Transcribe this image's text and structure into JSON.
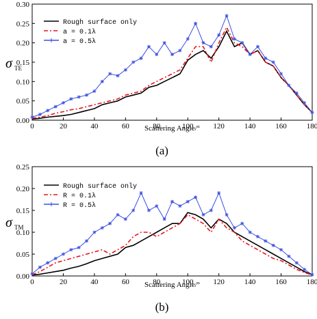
{
  "chart_data": [
    {
      "type": "line",
      "xlabel": "Scattering Angle/°",
      "ylabel": "σ",
      "ylabel_subscript": "TE",
      "caption": "(a)",
      "x": [
        0,
        5,
        10,
        15,
        20,
        25,
        30,
        35,
        40,
        45,
        50,
        55,
        60,
        65,
        70,
        75,
        80,
        85,
        90,
        95,
        100,
        105,
        110,
        115,
        120,
        125,
        130,
        135,
        140,
        145,
        150,
        155,
        160,
        165,
        170,
        175,
        180
      ],
      "xlim": [
        0,
        180
      ],
      "xticks": [
        0,
        20,
        40,
        60,
        80,
        100,
        120,
        140,
        160,
        180
      ],
      "ylim": [
        0,
        0.3
      ],
      "yticks": [
        {
          "value": 0,
          "label": "0.00"
        },
        {
          "value": 0.05,
          "label": "0.05"
        },
        {
          "value": 0.1,
          "label": "0.10"
        },
        {
          "value": 0.15,
          "label": "0.15"
        },
        {
          "value": 0.2,
          "label": "0.20"
        },
        {
          "value": 0.25,
          "label": "0.25"
        },
        {
          "value": 0.3,
          "label": "0.30"
        }
      ],
      "series": [
        {
          "name": "Rough surface only",
          "color": "#000000",
          "values": [
            0.003,
            0.005,
            0.008,
            0.01,
            0.012,
            0.015,
            0.02,
            0.025,
            0.03,
            0.04,
            0.045,
            0.05,
            0.06,
            0.065,
            0.07,
            0.085,
            0.09,
            0.1,
            0.11,
            0.12,
            0.155,
            0.17,
            0.18,
            0.16,
            0.19,
            0.23,
            0.19,
            0.2,
            0.17,
            0.18,
            0.15,
            0.14,
            0.11,
            0.09,
            0.065,
            0.04,
            0.02
          ]
        },
        {
          "name": "a = 0.1λ",
          "color": "#e8141b",
          "values": [
            0.005,
            0.008,
            0.012,
            0.018,
            0.022,
            0.027,
            0.03,
            0.035,
            0.04,
            0.045,
            0.05,
            0.055,
            0.065,
            0.07,
            0.075,
            0.09,
            0.1,
            0.11,
            0.12,
            0.13,
            0.16,
            0.19,
            0.19,
            0.15,
            0.2,
            0.24,
            0.2,
            0.19,
            0.17,
            0.18,
            0.15,
            0.14,
            0.11,
            0.09,
            0.065,
            0.04,
            0.02
          ]
        },
        {
          "name": "a = 0.5λ",
          "color": "#3b4fe0",
          "values": [
            0.008,
            0.015,
            0.025,
            0.035,
            0.045,
            0.055,
            0.06,
            0.065,
            0.075,
            0.1,
            0.12,
            0.115,
            0.13,
            0.15,
            0.16,
            0.19,
            0.17,
            0.2,
            0.17,
            0.18,
            0.21,
            0.25,
            0.2,
            0.19,
            0.22,
            0.27,
            0.21,
            0.2,
            0.17,
            0.19,
            0.16,
            0.15,
            0.12,
            0.09,
            0.07,
            0.045,
            0.02
          ]
        }
      ]
    },
    {
      "type": "line",
      "xlabel": "Scattering Angle/°",
      "ylabel": "σ",
      "ylabel_subscript": "TM",
      "caption": "(b)",
      "x": [
        0,
        5,
        10,
        15,
        20,
        25,
        30,
        35,
        40,
        45,
        50,
        55,
        60,
        65,
        70,
        75,
        80,
        85,
        90,
        95,
        100,
        105,
        110,
        115,
        120,
        125,
        130,
        135,
        140,
        145,
        150,
        155,
        160,
        165,
        170,
        175,
        180
      ],
      "xlim": [
        0,
        180
      ],
      "xticks": [
        0,
        20,
        40,
        60,
        80,
        100,
        120,
        140,
        160,
        180
      ],
      "ylim": [
        0,
        0.25
      ],
      "yticks": [
        {
          "value": 0,
          "label": "0.00"
        },
        {
          "value": 0.05,
          "label": "0.05"
        },
        {
          "value": 0.1,
          "label": "0.10"
        },
        {
          "value": 0.15,
          "label": "0.15"
        },
        {
          "value": 0.2,
          "label": "0.20"
        },
        {
          "value": 0.25,
          "label": "0.25"
        }
      ],
      "series": [
        {
          "name": "Rough surface only",
          "color": "#000000",
          "values": [
            0.002,
            0.004,
            0.007,
            0.01,
            0.013,
            0.018,
            0.022,
            0.028,
            0.035,
            0.04,
            0.045,
            0.05,
            0.065,
            0.07,
            0.08,
            0.09,
            0.1,
            0.11,
            0.12,
            0.12,
            0.145,
            0.14,
            0.13,
            0.11,
            0.13,
            0.12,
            0.1,
            0.09,
            0.08,
            0.07,
            0.06,
            0.05,
            0.04,
            0.03,
            0.02,
            0.01,
            0.003
          ]
        },
        {
          "name": "R = 0.1λ",
          "color": "#e8141b",
          "values": [
            0.003,
            0.01,
            0.02,
            0.03,
            0.035,
            0.04,
            0.045,
            0.05,
            0.055,
            0.06,
            0.05,
            0.06,
            0.07,
            0.09,
            0.1,
            0.1,
            0.09,
            0.1,
            0.11,
            0.12,
            0.14,
            0.13,
            0.12,
            0.1,
            0.13,
            0.11,
            0.1,
            0.08,
            0.07,
            0.06,
            0.05,
            0.04,
            0.035,
            0.025,
            0.015,
            0.008,
            0.002
          ]
        },
        {
          "name": "R = 0.5λ",
          "color": "#3b4fe0",
          "values": [
            0.005,
            0.02,
            0.03,
            0.04,
            0.05,
            0.06,
            0.065,
            0.08,
            0.1,
            0.11,
            0.12,
            0.14,
            0.13,
            0.15,
            0.19,
            0.15,
            0.16,
            0.13,
            0.17,
            0.16,
            0.17,
            0.18,
            0.14,
            0.15,
            0.19,
            0.14,
            0.11,
            0.12,
            0.1,
            0.09,
            0.08,
            0.07,
            0.06,
            0.045,
            0.03,
            0.015,
            0.003
          ]
        }
      ]
    }
  ]
}
